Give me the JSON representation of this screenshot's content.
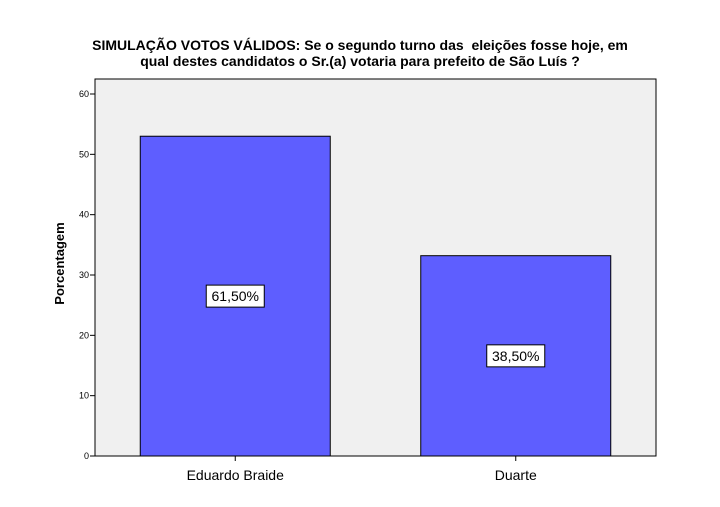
{
  "chart_data": {
    "type": "bar",
    "title_lines": [
      "SIMULAÇÃO VOTOS VÁLIDOS: Se o segundo turno das  eleições fosse hoje, em",
      "qual destes candidatos o Sr.(a) votaria para prefeito de São Luís ?"
    ],
    "xlabel": "",
    "ylabel": "Porcentagem",
    "ylim": [
      0,
      60
    ],
    "yticks": [
      "0",
      "10",
      "20",
      "30",
      "40",
      "50",
      "60"
    ],
    "categories": [
      "Eduardo Braide",
      "Duarte"
    ],
    "values": [
      53,
      33.2
    ],
    "data_labels": [
      "61,50%",
      "38,50%"
    ],
    "grid": false,
    "colors": {
      "bar": "#5e5eff",
      "plot_background": "#f0f0f0"
    }
  }
}
